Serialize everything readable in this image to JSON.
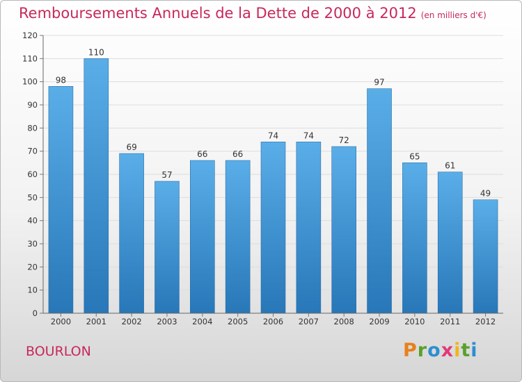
{
  "chart_data": {
    "type": "bar",
    "title": "Remboursements Annuels de la Dette de 2000 à 2012",
    "unit_note": "(en milliers d'€)",
    "categories": [
      "2000",
      "2001",
      "2002",
      "2003",
      "2004",
      "2005",
      "2006",
      "2007",
      "2008",
      "2009",
      "2010",
      "2011",
      "2012"
    ],
    "values": [
      98,
      110,
      69,
      57,
      66,
      66,
      74,
      74,
      72,
      97,
      65,
      61,
      49
    ],
    "yticks": [
      0,
      10,
      20,
      30,
      40,
      50,
      60,
      70,
      80,
      90,
      100,
      110,
      120
    ],
    "ylim": [
      0,
      120
    ],
    "xlabel": "",
    "ylabel": "",
    "grid": true,
    "bar_color": "#3f93d6"
  },
  "footer": {
    "location": "BOURLON",
    "logo": {
      "letters": [
        "P",
        "r",
        "o",
        "x",
        "i",
        "t",
        "i"
      ],
      "colors": [
        "#e8801c",
        "#5aa02c",
        "#2c8fd0",
        "#e03a7a",
        "#f0b51c",
        "#5aa02c",
        "#2c8fd0"
      ]
    }
  },
  "colors": {
    "title": "#c8285a",
    "axis": "#555555"
  }
}
